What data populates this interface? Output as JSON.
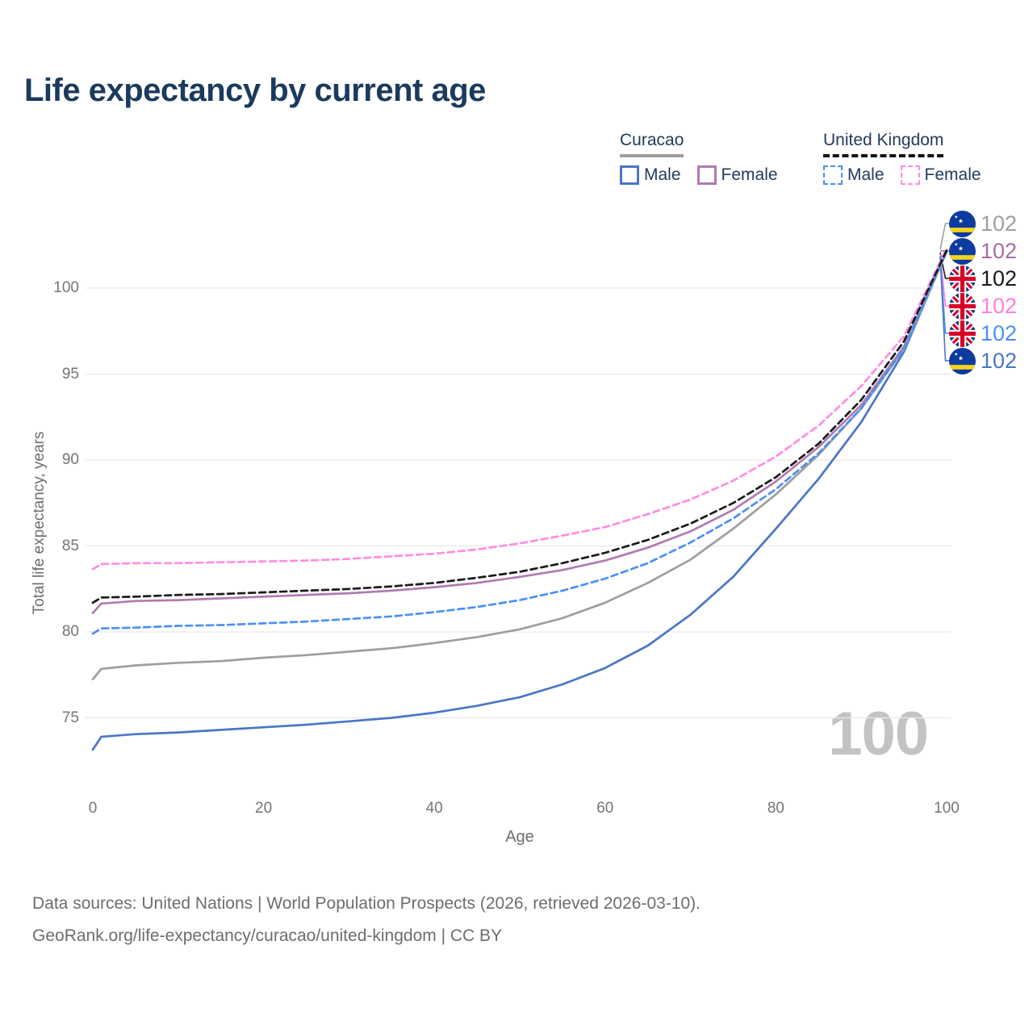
{
  "title": "Life expectancy by current age",
  "legend": {
    "groups": [
      {
        "name": "Curacao",
        "line_style": "solid",
        "underline_color": "#9e9e9e",
        "items": [
          {
            "label": "Male",
            "color": "#4b76c5"
          },
          {
            "label": "Female",
            "color": "#b279b2"
          }
        ]
      },
      {
        "name": "United Kingdom",
        "line_style": "dashed",
        "underline_color": "#141414",
        "items": [
          {
            "label": "Male",
            "color": "#4a90f5"
          },
          {
            "label": "Female",
            "color": "#ff8de4"
          }
        ]
      }
    ]
  },
  "y_axis": {
    "title": "Total life expectancy, years",
    "ticks": [
      75,
      80,
      85,
      90,
      95,
      100
    ]
  },
  "x_axis": {
    "title": "Age",
    "ticks": [
      0,
      20,
      40,
      60,
      80,
      100
    ]
  },
  "watermark_age": "100",
  "grid_color": "#e9e9e9",
  "chart_data": {
    "type": "line",
    "title": "Life expectancy by current age",
    "xlabel": "Age",
    "ylabel": "Total life expectancy, years",
    "xlim": [
      0,
      100
    ],
    "ylim": [
      72.5,
      103
    ],
    "grid": "horizontal",
    "legend_position": "top-right",
    "x_ages": [
      0,
      1,
      5,
      10,
      15,
      20,
      25,
      30,
      35,
      40,
      45,
      50,
      55,
      60,
      65,
      70,
      75,
      80,
      85,
      90,
      95,
      100
    ],
    "series": [
      {
        "id": "curacao-male",
        "country": "Curacao",
        "sex": "Male",
        "color": "#4b76c5",
        "dash": "solid",
        "values": [
          73.15,
          73.9,
          74.05,
          74.15,
          74.3,
          74.45,
          74.6,
          74.8,
          75.0,
          75.3,
          75.7,
          76.2,
          76.95,
          77.9,
          79.2,
          81.0,
          83.2,
          86.0,
          88.9,
          92.2,
          96.3,
          102.15
        ]
      },
      {
        "id": "curacao-female",
        "country": "Curacao",
        "sex": "Female",
        "color": "#b279b2",
        "dash": "solid",
        "values": [
          81.1,
          81.65,
          81.8,
          81.85,
          81.95,
          82.05,
          82.15,
          82.25,
          82.4,
          82.6,
          82.85,
          83.2,
          83.6,
          84.15,
          84.9,
          85.85,
          87.1,
          88.75,
          90.75,
          93.2,
          96.6,
          102.2
        ]
      },
      {
        "id": "curacao-both",
        "country": "Curacao",
        "sex": "Both sexes",
        "color": "#9e9e9e",
        "dash": "solid",
        "values": [
          77.25,
          77.85,
          78.05,
          78.2,
          78.3,
          78.5,
          78.65,
          78.85,
          79.05,
          79.35,
          79.7,
          80.15,
          80.8,
          81.7,
          82.85,
          84.2,
          86.0,
          88.0,
          90.3,
          93.0,
          96.45,
          102.1
        ]
      },
      {
        "id": "uk-male",
        "country": "United Kingdom",
        "sex": "Male",
        "color": "#4a90f5",
        "dash": "dashed",
        "values": [
          79.9,
          80.2,
          80.25,
          80.35,
          80.4,
          80.5,
          80.6,
          80.75,
          80.9,
          81.15,
          81.45,
          81.85,
          82.4,
          83.1,
          84.0,
          85.2,
          86.6,
          88.3,
          90.4,
          93.0,
          96.5,
          102.15
        ]
      },
      {
        "id": "uk-female",
        "country": "United Kingdom",
        "sex": "Female",
        "color": "#ff8de4",
        "dash": "dashed",
        "values": [
          83.65,
          83.95,
          84.0,
          84.0,
          84.05,
          84.1,
          84.15,
          84.25,
          84.4,
          84.55,
          84.8,
          85.15,
          85.6,
          86.1,
          86.85,
          87.7,
          88.8,
          90.2,
          92.0,
          94.3,
          97.2,
          102.3
        ]
      },
      {
        "id": "uk-both",
        "country": "United Kingdom",
        "sex": "Both sexes",
        "color": "#1a1a1a",
        "dash": "dashed",
        "values": [
          81.7,
          82.0,
          82.05,
          82.15,
          82.2,
          82.3,
          82.4,
          82.5,
          82.65,
          82.85,
          83.15,
          83.5,
          84.0,
          84.6,
          85.35,
          86.3,
          87.5,
          89.0,
          90.95,
          93.5,
          96.9,
          102.2
        ]
      }
    ],
    "end_labels": [
      {
        "flag": "curacao",
        "value": "102",
        "color": "#9e9e9e",
        "series_id": "curacao-both"
      },
      {
        "flag": "curacao",
        "value": "102",
        "color": "#a86ca8",
        "series_id": "curacao-female"
      },
      {
        "flag": "uk",
        "value": "102",
        "color": "#1a1a1a",
        "series_id": "uk-both"
      },
      {
        "flag": "uk",
        "value": "102",
        "color": "#ff7ee6",
        "series_id": "uk-female"
      },
      {
        "flag": "uk",
        "value": "102",
        "color": "#4a90f5",
        "series_id": "uk-male"
      },
      {
        "flag": "curacao",
        "value": "102",
        "color": "#4b76c5",
        "series_id": "curacao-male"
      }
    ]
  },
  "footer": {
    "line1": "Data sources: United Nations | World Population Prospects (2026, retrieved 2026-03-10).",
    "line2": "GeoRank.org/life-expectancy/curacao/united-kingdom | CC BY"
  }
}
